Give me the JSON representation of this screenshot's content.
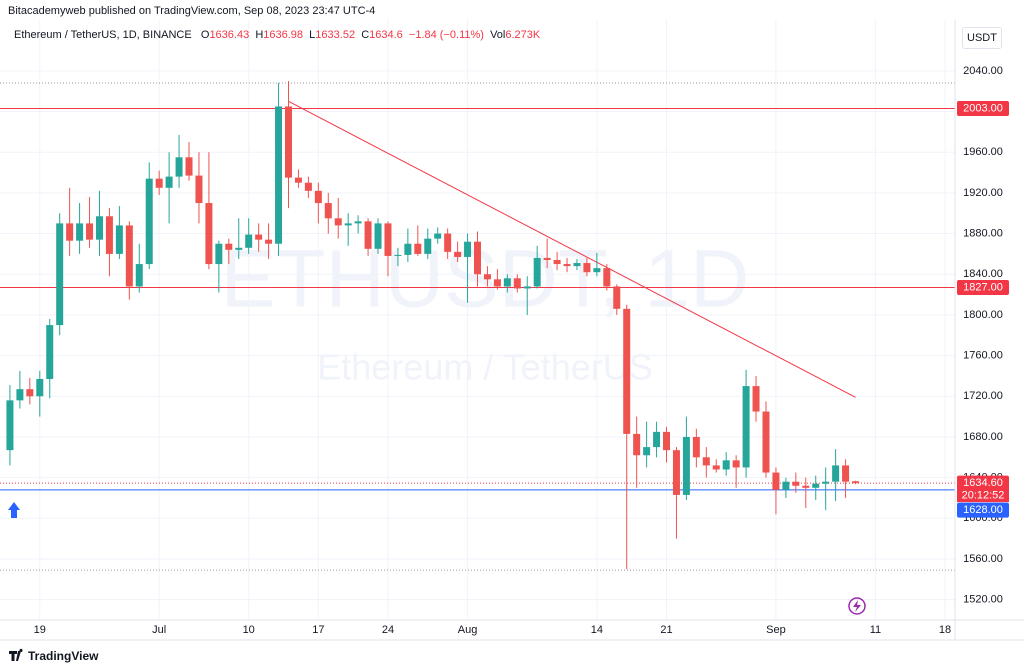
{
  "header": {
    "title": "Bitacademyweb published on TradingView.com, Sep 08, 2023 23:47 UTC-4"
  },
  "legend": {
    "symbol": "Ethereum / TetherUS, 1D, BINANCE",
    "open_label": "O",
    "open": 1636.43,
    "high_label": "H",
    "high": 1636.98,
    "low_label": "L",
    "low": 1633.52,
    "close_label": "C",
    "close": 1634.6,
    "change": "−1.84 (−0.11%)",
    "volume_label": "Vol",
    "volume": "6.273K"
  },
  "currency_button": "USDT",
  "watermark": {
    "symbol": "ETHUSDT, 1D",
    "description": "Ethereum / TetherUS"
  },
  "footer": {
    "brand": "TradingView"
  },
  "chart_data": {
    "type": "candlestick",
    "up_color": "#26a69a",
    "down_color": "#ef5350",
    "x": [
      "2023-06-16",
      "2023-06-17",
      "2023-06-18",
      "2023-06-19",
      "2023-06-20",
      "2023-06-21",
      "2023-06-22",
      "2023-06-23",
      "2023-06-24",
      "2023-06-25",
      "2023-06-26",
      "2023-06-27",
      "2023-06-28",
      "2023-06-29",
      "2023-06-30",
      "2023-07-01",
      "2023-07-02",
      "2023-07-03",
      "2023-07-04",
      "2023-07-05",
      "2023-07-06",
      "2023-07-07",
      "2023-07-08",
      "2023-07-09",
      "2023-07-10",
      "2023-07-11",
      "2023-07-12",
      "2023-07-13",
      "2023-07-14",
      "2023-07-15",
      "2023-07-16",
      "2023-07-17",
      "2023-07-18",
      "2023-07-19",
      "2023-07-20",
      "2023-07-21",
      "2023-07-22",
      "2023-07-23",
      "2023-07-24",
      "2023-07-25",
      "2023-07-26",
      "2023-07-27",
      "2023-07-28",
      "2023-07-29",
      "2023-07-30",
      "2023-07-31",
      "2023-08-01",
      "2023-08-02",
      "2023-08-03",
      "2023-08-04",
      "2023-08-05",
      "2023-08-06",
      "2023-08-07",
      "2023-08-08",
      "2023-08-09",
      "2023-08-10",
      "2023-08-11",
      "2023-08-12",
      "2023-08-13",
      "2023-08-14",
      "2023-08-15",
      "2023-08-16",
      "2023-08-17",
      "2023-08-18",
      "2023-08-19",
      "2023-08-20",
      "2023-08-21",
      "2023-08-22",
      "2023-08-23",
      "2023-08-24",
      "2023-08-25",
      "2023-08-26",
      "2023-08-27",
      "2023-08-28",
      "2023-08-29",
      "2023-08-30",
      "2023-08-31",
      "2023-09-01",
      "2023-09-02",
      "2023-09-03",
      "2023-09-04",
      "2023-09-05",
      "2023-09-06",
      "2023-09-07",
      "2023-09-08",
      "2023-09-09"
    ],
    "open": [
      1667,
      1716,
      1727,
      1720,
      1737,
      1790,
      1890,
      1873,
      1890,
      1874,
      1897,
      1860,
      1888,
      1828,
      1850,
      1934,
      1925,
      1936,
      1955,
      1937,
      1910,
      1850,
      1870,
      1864,
      1866,
      1879,
      1874,
      1870,
      2005,
      1935,
      1930,
      1922,
      1910,
      1895,
      1888,
      1890,
      1892,
      1865,
      1890,
      1858,
      1859,
      1870,
      1860,
      1875,
      1880,
      1862,
      1857,
      1872,
      1840,
      1835,
      1828,
      1836,
      1826,
      1828,
      1856,
      1854,
      1850,
      1848,
      1851,
      1842,
      1846,
      1828,
      1806,
      1683,
      1662,
      1670,
      1685,
      1667,
      1623,
      1680,
      1660,
      1652,
      1648,
      1657,
      1650,
      1730,
      1705,
      1645,
      1628,
      1636,
      1632,
      1630,
      1634,
      1636,
      1652,
      1636.43
    ],
    "high": [
      1731,
      1745,
      1738,
      1745,
      1796,
      1900,
      1925,
      1910,
      1916,
      1922,
      1905,
      1907,
      1892,
      1870,
      1950,
      1942,
      1960,
      1977,
      1970,
      1960,
      1960,
      1873,
      1875,
      1895,
      1895,
      1890,
      1890,
      2028,
      2030,
      1943,
      1936,
      1930,
      1920,
      1915,
      1900,
      1898,
      1895,
      1895,
      1892,
      1866,
      1885,
      1888,
      1885,
      1886,
      1885,
      1872,
      1880,
      1882,
      1848,
      1845,
      1840,
      1840,
      1838,
      1868,
      1875,
      1862,
      1856,
      1855,
      1856,
      1861,
      1850,
      1830,
      1810,
      1700,
      1695,
      1695,
      1690,
      1670,
      1700,
      1688,
      1670,
      1658,
      1665,
      1662,
      1746,
      1740,
      1715,
      1650,
      1640,
      1645,
      1640,
      1642,
      1650,
      1668,
      1658,
      1636.98
    ],
    "low": [
      1652,
      1708,
      1712,
      1700,
      1718,
      1780,
      1858,
      1860,
      1866,
      1858,
      1838,
      1855,
      1815,
      1822,
      1845,
      1918,
      1890,
      1925,
      1932,
      1890,
      1845,
      1822,
      1850,
      1855,
      1860,
      1862,
      1855,
      1858,
      1905,
      1925,
      1915,
      1890,
      1880,
      1875,
      1868,
      1880,
      1858,
      1860,
      1838,
      1848,
      1852,
      1858,
      1855,
      1870,
      1855,
      1852,
      1812,
      1828,
      1828,
      1825,
      1822,
      1822,
      1800,
      1826,
      1846,
      1844,
      1842,
      1844,
      1838,
      1838,
      1824,
      1800,
      1550,
      1630,
      1650,
      1660,
      1655,
      1580,
      1618,
      1650,
      1640,
      1645,
      1642,
      1630,
      1640,
      1695,
      1640,
      1604,
      1620,
      1625,
      1610,
      1618,
      1608,
      1617,
      1620,
      1633.52
    ],
    "close": [
      1716,
      1727,
      1720,
      1737,
      1790,
      1890,
      1873,
      1890,
      1874,
      1897,
      1860,
      1888,
      1828,
      1850,
      1934,
      1925,
      1936,
      1955,
      1937,
      1910,
      1850,
      1870,
      1864,
      1866,
      1879,
      1874,
      1870,
      2005,
      1935,
      1930,
      1922,
      1910,
      1895,
      1888,
      1890,
      1892,
      1865,
      1890,
      1858,
      1859,
      1870,
      1860,
      1875,
      1880,
      1862,
      1857,
      1872,
      1840,
      1835,
      1828,
      1836,
      1826,
      1828,
      1856,
      1854,
      1850,
      1848,
      1851,
      1842,
      1846,
      1828,
      1806,
      1683,
      1662,
      1670,
      1685,
      1667,
      1623,
      1680,
      1660,
      1652,
      1648,
      1657,
      1650,
      1730,
      1705,
      1645,
      1628,
      1636,
      1632,
      1630,
      1634,
      1636,
      1652,
      1636,
      1634.6
    ],
    "xlim": [
      "2023-06-15",
      "2023-09-19"
    ],
    "ylim": [
      1500,
      2090
    ],
    "yticks": [
      {
        "value": 1520,
        "label": "1520.00"
      },
      {
        "value": 1560,
        "label": "1560.00"
      },
      {
        "value": 1600,
        "label": "1600.00"
      },
      {
        "value": 1640,
        "label": "1640.00"
      },
      {
        "value": 1680,
        "label": "1680.00"
      },
      {
        "value": 1720,
        "label": "1720.00"
      },
      {
        "value": 1760,
        "label": "1760.00"
      },
      {
        "value": 1800,
        "label": "1800.00"
      },
      {
        "value": 1840,
        "label": "1840.00"
      },
      {
        "value": 1880,
        "label": "1880.00"
      },
      {
        "value": 1920,
        "label": "1920.00"
      },
      {
        "value": 1960,
        "label": "1960.00"
      },
      {
        "value": 2000,
        "label": "2000.00"
      },
      {
        "value": 2040,
        "label": "2040.00"
      }
    ],
    "xticks": [
      {
        "value": "2023-06-19",
        "label": "19"
      },
      {
        "value": "2023-07-01",
        "label": "Jul"
      },
      {
        "value": "2023-07-10",
        "label": "10"
      },
      {
        "value": "2023-07-17",
        "label": "17"
      },
      {
        "value": "2023-07-24",
        "label": "24"
      },
      {
        "value": "2023-08-01",
        "label": "Aug"
      },
      {
        "value": "2023-08-14",
        "label": "14"
      },
      {
        "value": "2023-08-21",
        "label": "21"
      },
      {
        "value": "2023-09-01",
        "label": "Sep"
      },
      {
        "value": "2023-09-11",
        "label": "11"
      },
      {
        "value": "2023-09-18",
        "label": "18"
      }
    ],
    "grid": true,
    "horizontal_lines": [
      {
        "value": 2003,
        "label": "2003.00",
        "color": "#f23645"
      },
      {
        "value": 1827,
        "label": "1827.00",
        "color": "#f23645"
      },
      {
        "value": 1628,
        "label": "1628.00",
        "color": "#2962ff"
      }
    ],
    "last_price": {
      "value": 1634.6,
      "label": "1634.60",
      "countdown": "20:12:52",
      "color": "#f23645"
    },
    "dotted_levels": [
      2028,
      1549
    ],
    "trend_line": {
      "x": [
        "2023-07-14",
        "2023-09-09"
      ],
      "y": [
        2010,
        1719
      ],
      "color": "#f23645"
    }
  }
}
